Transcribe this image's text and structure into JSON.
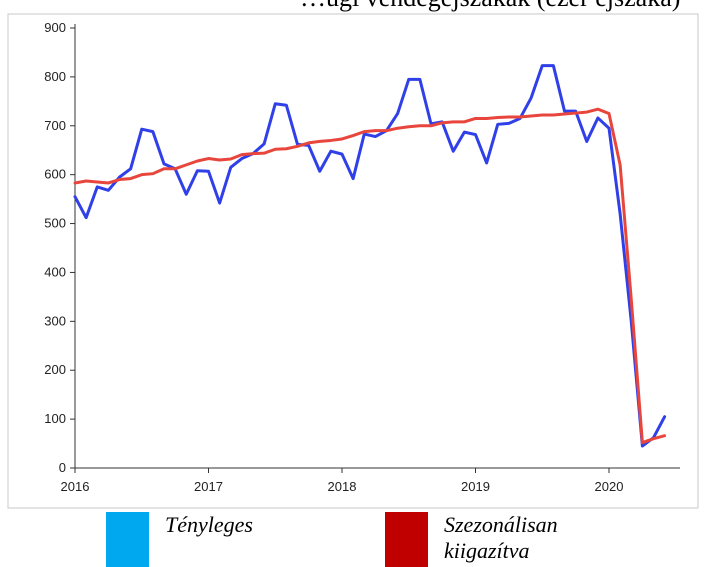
{
  "chart_data": {
    "type": "line",
    "title": "…ügi vendégéjszakák (ezer éjszaka)",
    "x_ticks": [
      "2016",
      "2017",
      "2018",
      "2019",
      "2020"
    ],
    "ylim": [
      0,
      900
    ],
    "y_ticks": [
      0,
      100,
      200,
      300,
      400,
      500,
      600,
      700,
      800,
      900
    ],
    "grid": false,
    "x_months": [
      "2016-01",
      "2016-02",
      "2016-03",
      "2016-04",
      "2016-05",
      "2016-06",
      "2016-07",
      "2016-08",
      "2016-09",
      "2016-10",
      "2016-11",
      "2016-12",
      "2017-01",
      "2017-02",
      "2017-03",
      "2017-04",
      "2017-05",
      "2017-06",
      "2017-07",
      "2017-08",
      "2017-09",
      "2017-10",
      "2017-11",
      "2017-12",
      "2018-01",
      "2018-02",
      "2018-03",
      "2018-04",
      "2018-05",
      "2018-06",
      "2018-07",
      "2018-08",
      "2018-09",
      "2018-10",
      "2018-11",
      "2018-12",
      "2019-01",
      "2019-02",
      "2019-03",
      "2019-04",
      "2019-05",
      "2019-06",
      "2019-07",
      "2019-08",
      "2019-09",
      "2019-10",
      "2019-11",
      "2019-12",
      "2020-01",
      "2020-02",
      "2020-03",
      "2020-04",
      "2020-05",
      "2020-06"
    ],
    "series": [
      {
        "name": "Tényleges",
        "color": "#3040e8",
        "values": [
          555,
          512,
          575,
          568,
          595,
          612,
          693,
          688,
          622,
          612,
          560,
          608,
          607,
          542,
          615,
          633,
          643,
          663,
          745,
          742,
          662,
          660,
          607,
          648,
          642,
          592,
          683,
          678,
          690,
          725,
          795,
          795,
          704,
          708,
          648,
          687,
          682,
          624,
          703,
          705,
          715,
          757,
          823,
          823,
          730,
          730,
          668,
          716,
          695,
          520,
          300,
          45,
          62,
          105
        ]
      },
      {
        "name": "Szezonálisan kiigazítva",
        "color": "#e8463c",
        "values": [
          583,
          587,
          585,
          583,
          590,
          592,
          600,
          602,
          612,
          612,
          620,
          628,
          633,
          630,
          632,
          641,
          643,
          644,
          652,
          653,
          658,
          665,
          668,
          670,
          673,
          680,
          688,
          690,
          690,
          695,
          698,
          700,
          700,
          706,
          708,
          708,
          715,
          715,
          717,
          718,
          718,
          720,
          722,
          722,
          724,
          726,
          728,
          734,
          725,
          620,
          345,
          52,
          60,
          66
        ]
      }
    ]
  },
  "legend": [
    {
      "label": "Tényleges",
      "swatch_color": "#00a8f0"
    },
    {
      "label": "Szezonálisan\nkiigazítva",
      "swatch_color": "#c00000"
    }
  ]
}
